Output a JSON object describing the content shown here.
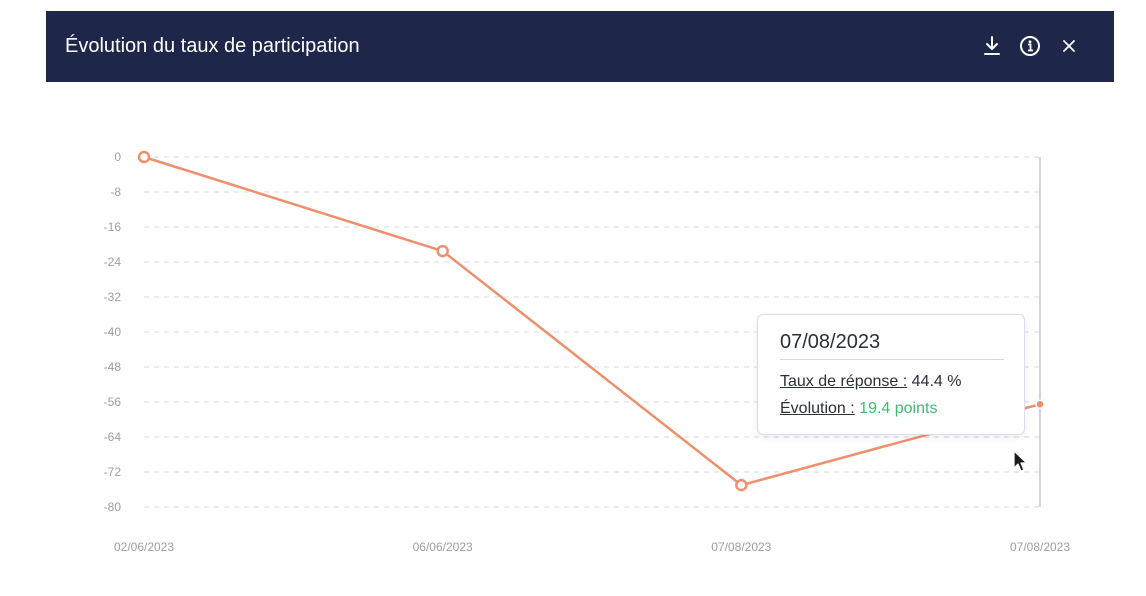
{
  "header": {
    "title": "Évolution du taux de participation",
    "icons": {
      "download": "download-icon",
      "info": "info-icon",
      "close": "close-icon"
    }
  },
  "colors": {
    "header_bg": "#1e2749",
    "series": "#ee8f6d",
    "grid": "#e3e5ea",
    "green": "#3dbb6f"
  },
  "chart_data": {
    "type": "line",
    "title": "",
    "xlabel": "",
    "ylabel": "",
    "x": [
      "02/06/2023",
      "06/06/2023",
      "07/08/2023",
      "07/08/2023"
    ],
    "series": [
      {
        "values": [
          0,
          -21.5,
          -75,
          -56.5
        ]
      }
    ],
    "ylim": [
      -80,
      0
    ],
    "yticks": [
      0,
      -8,
      -16,
      -24,
      -32,
      -40,
      -48,
      -56,
      -64,
      -72,
      -80
    ],
    "grid": true,
    "legend": "none"
  },
  "tooltip": {
    "date": "07/08/2023",
    "rate_label": "Taux de réponse :",
    "rate_value": "44.4 %",
    "evolution_label": "Évolution :",
    "evolution_value": "19.4 points"
  }
}
